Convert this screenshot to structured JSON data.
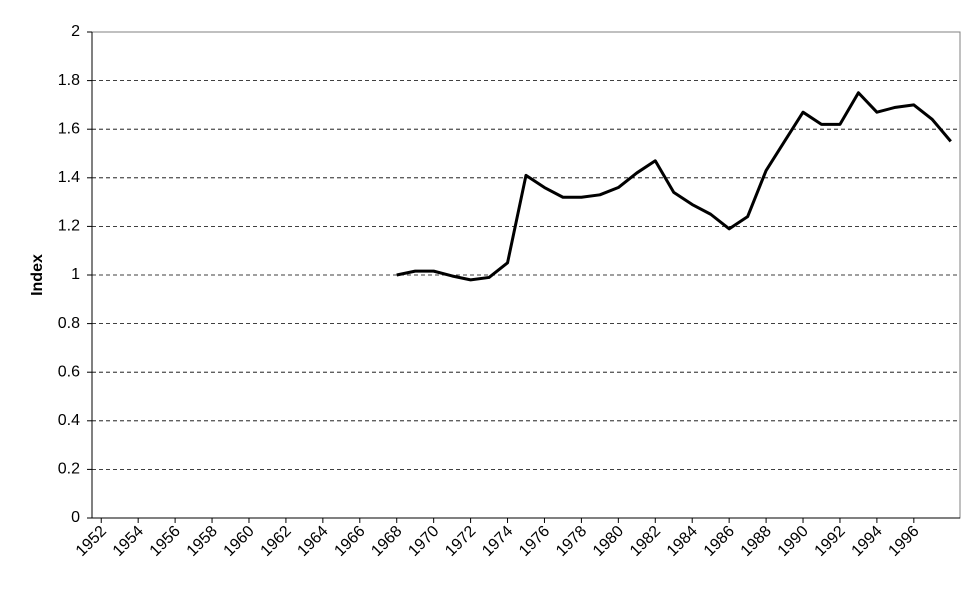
{
  "chart_data": {
    "type": "line",
    "y_label": "Index",
    "x": [
      1968,
      1969,
      1970,
      1971,
      1972,
      1973,
      1974,
      1975,
      1976,
      1977,
      1978,
      1979,
      1980,
      1981,
      1982,
      1983,
      1984,
      1985,
      1986,
      1987,
      1988,
      1989,
      1990,
      1991,
      1992,
      1993,
      1994,
      1995,
      1996,
      1997,
      1998
    ],
    "series": [
      {
        "color": "#000000",
        "values": [
          1.0,
          1.016,
          1.016,
          0.996,
          0.98,
          0.99,
          1.05,
          1.41,
          1.36,
          1.32,
          1.32,
          1.33,
          1.36,
          1.42,
          1.47,
          1.34,
          1.29,
          1.25,
          1.19,
          1.24,
          1.43,
          1.55,
          1.67,
          1.62,
          1.62,
          1.75,
          1.67,
          1.69,
          1.7,
          1.64,
          1.55
        ]
      }
    ],
    "xlim": [
      1951.5,
      1998.5
    ],
    "xticks": [
      1952,
      1954,
      1956,
      1958,
      1960,
      1962,
      1964,
      1966,
      1968,
      1970,
      1972,
      1974,
      1976,
      1978,
      1980,
      1982,
      1984,
      1986,
      1988,
      1990,
      1992,
      1994,
      1996
    ],
    "ylim": [
      0,
      2
    ],
    "yticks": [
      0,
      0.2,
      0.4,
      0.6,
      0.8,
      1,
      1.2,
      1.4,
      1.6,
      1.8,
      2
    ],
    "grid": true
  }
}
